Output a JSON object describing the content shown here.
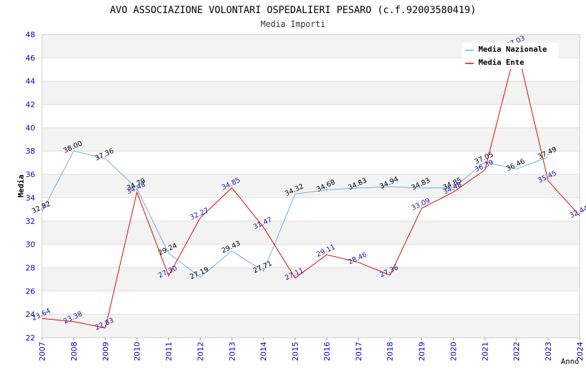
{
  "chart_data": {
    "type": "line",
    "title": "AVO ASSOCIAZIONE VOLONTARI OSPEDALIERI PESARO (c.f.92003580419)",
    "subtitle": "Media Importi",
    "xlabel": "Anno",
    "ylabel": "Media",
    "ylim": [
      22,
      48
    ],
    "yticks": [
      "22",
      "24",
      "26",
      "28",
      "30",
      "32",
      "34",
      "36",
      "38",
      "40",
      "42",
      "44",
      "46",
      "48"
    ],
    "categories": [
      "2007",
      "2008",
      "2009",
      "2010",
      "2011",
      "2012",
      "2013",
      "2014",
      "2015",
      "2016",
      "2017",
      "2018",
      "2019",
      "2020",
      "2021",
      "2022",
      "2023",
      "2024"
    ],
    "legend_position": "top-right",
    "series": [
      {
        "name": "Media Nazionale",
        "color": "#6aaee8",
        "values": [
          32.82,
          38.0,
          37.36,
          34.79,
          29.24,
          27.19,
          29.43,
          27.71,
          34.32,
          34.68,
          34.83,
          34.94,
          34.83,
          34.85,
          37.05,
          36.46,
          37.49,
          null
        ],
        "labels": [
          "32.82",
          "38.00",
          "37.36",
          "34.79",
          "29.24",
          "27.19",
          "29.43",
          "27.71",
          "34.32",
          "34.68",
          "34.83",
          "34.94",
          "34.83",
          "34.85",
          "37.05",
          "36.46",
          "37.49",
          ""
        ]
      },
      {
        "name": "Media Ente",
        "color": "#e00000",
        "values": [
          23.64,
          23.38,
          22.83,
          34.48,
          27.3,
          32.27,
          34.85,
          31.47,
          27.11,
          29.11,
          28.46,
          27.36,
          33.09,
          34.48,
          36.39,
          47.03,
          35.45,
          32.44
        ],
        "labels": [
          "23.64",
          "23.38",
          "22.83",
          "34.48",
          "27.30",
          "32.27",
          "34.85",
          "31.47",
          "27.11",
          "29.11",
          "28.46",
          "27.36",
          "33.09",
          "34.48",
          "36.39",
          "47.03",
          "35.45",
          "32.44"
        ]
      }
    ]
  }
}
